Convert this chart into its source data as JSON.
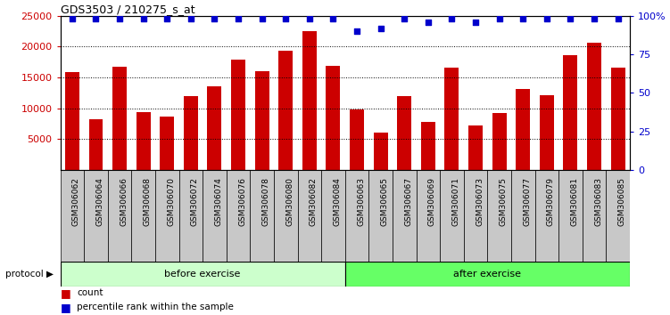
{
  "title": "GDS3503 / 210275_s_at",
  "categories": [
    "GSM306062",
    "GSM306064",
    "GSM306066",
    "GSM306068",
    "GSM306070",
    "GSM306072",
    "GSM306074",
    "GSM306076",
    "GSM306078",
    "GSM306080",
    "GSM306082",
    "GSM306084",
    "GSM306063",
    "GSM306065",
    "GSM306067",
    "GSM306069",
    "GSM306071",
    "GSM306073",
    "GSM306075",
    "GSM306077",
    "GSM306079",
    "GSM306081",
    "GSM306083",
    "GSM306085"
  ],
  "bar_values": [
    15900,
    8200,
    16800,
    9400,
    8700,
    12000,
    13500,
    17900,
    16000,
    19300,
    22500,
    16900,
    9800,
    6100,
    12000,
    7800,
    16600,
    7200,
    9200,
    13200,
    12100,
    18600,
    20700,
    16600
  ],
  "percentile_values": [
    98,
    98,
    98,
    98,
    98,
    98,
    98,
    98,
    98,
    98,
    98,
    98,
    90,
    92,
    98,
    96,
    98,
    96,
    98,
    98,
    98,
    98,
    98,
    98
  ],
  "bar_color": "#cc0000",
  "percentile_color": "#0000cc",
  "ylim_left": [
    0,
    25000
  ],
  "ylim_right": [
    0,
    100
  ],
  "yticks_left": [
    5000,
    10000,
    15000,
    20000,
    25000
  ],
  "yticks_right": [
    0,
    25,
    50,
    75,
    100
  ],
  "group1_count": 12,
  "group1_label": "before exercise",
  "group2_label": "after exercise",
  "group1_color": "#ccffcc",
  "group2_color": "#66ff66",
  "protocol_label": "protocol",
  "legend_count_label": "count",
  "legend_pct_label": "percentile rank within the sample",
  "bg_color": "#ffffff",
  "plot_bg_color": "#ffffff",
  "ylabel_left_color": "#cc0000",
  "ylabel_right_color": "#0000cc",
  "xticklabel_bg": "#c8c8c8"
}
